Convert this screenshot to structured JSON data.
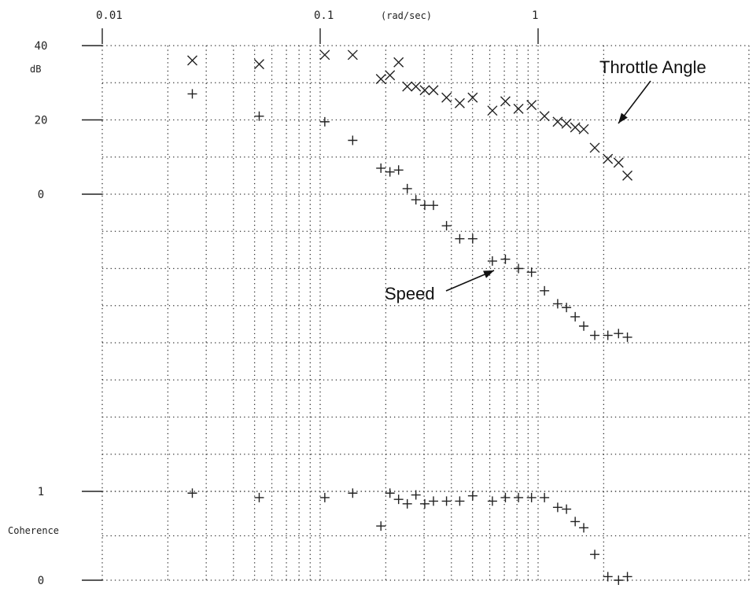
{
  "chart_data": {
    "type": "scatter",
    "x_scale": "log",
    "x_unit": "(rad/sec)",
    "xlim": [
      0.01,
      2
    ],
    "x_ticks": [
      {
        "value": 0.01,
        "label": "0.01"
      },
      {
        "value": 0.1,
        "label": "0.1"
      },
      {
        "value": 1,
        "label": "1"
      }
    ],
    "panels": [
      {
        "name": "magnitude",
        "ylabel": "dB",
        "ylim": [
          -80,
          40
        ],
        "y_ticks": [
          {
            "value": 40,
            "label": "40"
          },
          {
            "value": 20,
            "label": "20"
          },
          {
            "value": 0,
            "label": "0"
          }
        ],
        "grid_step": 10
      },
      {
        "name": "coherence",
        "ylabel": "Coherence",
        "ylim": [
          0,
          1
        ],
        "y_ticks": [
          {
            "value": 1,
            "label": "1"
          },
          {
            "value": 0,
            "label": "0"
          }
        ],
        "grid_step": 0.5
      }
    ],
    "series": [
      {
        "name": "Throttle Angle",
        "panel": "magnitude",
        "marker": "x",
        "points": [
          [
            0.0259,
            36.0
          ],
          [
            0.0525,
            35.0
          ],
          [
            0.105,
            37.5
          ],
          [
            0.141,
            37.5
          ],
          [
            0.19,
            31.0
          ],
          [
            0.209,
            32.0
          ],
          [
            0.229,
            35.5
          ],
          [
            0.251,
            29.0
          ],
          [
            0.275,
            29.0
          ],
          [
            0.302,
            28.0
          ],
          [
            0.331,
            28.0
          ],
          [
            0.38,
            26.0
          ],
          [
            0.437,
            24.5
          ],
          [
            0.501,
            26.0
          ],
          [
            0.617,
            22.5
          ],
          [
            0.708,
            25.0
          ],
          [
            0.813,
            23.0
          ],
          [
            0.933,
            24.0
          ],
          [
            1.07,
            21.0
          ],
          [
            1.23,
            19.5
          ],
          [
            1.35,
            19.0
          ],
          [
            1.48,
            18.0
          ],
          [
            1.62,
            17.5
          ],
          [
            1.82,
            12.5
          ],
          [
            2.09,
            9.5
          ],
          [
            2.34,
            8.5
          ],
          [
            2.57,
            5.0
          ]
        ]
      },
      {
        "name": "Speed",
        "panel": "magnitude",
        "marker": "+",
        "points": [
          [
            0.0259,
            27.0
          ],
          [
            0.0525,
            21.0
          ],
          [
            0.105,
            19.5
          ],
          [
            0.141,
            14.5
          ],
          [
            0.19,
            7.0
          ],
          [
            0.209,
            6.0
          ],
          [
            0.229,
            6.5
          ],
          [
            0.251,
            1.5
          ],
          [
            0.275,
            -1.5
          ],
          [
            0.302,
            -3.0
          ],
          [
            0.331,
            -3.0
          ],
          [
            0.38,
            -8.5
          ],
          [
            0.437,
            -12.0
          ],
          [
            0.501,
            -12.0
          ],
          [
            0.617,
            -18.0
          ],
          [
            0.708,
            -17.5
          ],
          [
            0.813,
            -20.0
          ],
          [
            0.933,
            -21.0
          ],
          [
            1.07,
            -26.0
          ],
          [
            1.23,
            -29.5
          ],
          [
            1.35,
            -30.5
          ],
          [
            1.48,
            -33.0
          ],
          [
            1.62,
            -35.5
          ],
          [
            1.82,
            -38.0
          ],
          [
            2.09,
            -38.0
          ],
          [
            2.34,
            -37.5
          ],
          [
            2.57,
            -38.5
          ]
        ]
      },
      {
        "name": "Coherence",
        "panel": "coherence",
        "marker": "+",
        "points": [
          [
            0.0259,
            0.98
          ],
          [
            0.0525,
            0.93
          ],
          [
            0.105,
            0.93
          ],
          [
            0.141,
            0.98
          ],
          [
            0.19,
            0.61
          ],
          [
            0.209,
            0.98
          ],
          [
            0.229,
            0.91
          ],
          [
            0.251,
            0.86
          ],
          [
            0.275,
            0.96
          ],
          [
            0.302,
            0.86
          ],
          [
            0.331,
            0.89
          ],
          [
            0.38,
            0.89
          ],
          [
            0.437,
            0.89
          ],
          [
            0.501,
            0.95
          ],
          [
            0.617,
            0.89
          ],
          [
            0.708,
            0.93
          ],
          [
            0.813,
            0.93
          ],
          [
            0.933,
            0.93
          ],
          [
            1.07,
            0.93
          ],
          [
            1.23,
            0.82
          ],
          [
            1.35,
            0.8
          ],
          [
            1.48,
            0.66
          ],
          [
            1.62,
            0.59
          ],
          [
            1.82,
            0.29
          ],
          [
            2.09,
            0.04
          ],
          [
            2.34,
            0.0
          ],
          [
            2.57,
            0.04
          ]
        ]
      }
    ],
    "annotations": [
      {
        "text": "Throttle Angle",
        "points_to": [
          1.07,
          21.0
        ],
        "panel": "magnitude"
      },
      {
        "text": "Speed",
        "points_to": [
          0.617,
          -18.0
        ],
        "panel": "magnitude"
      }
    ]
  }
}
